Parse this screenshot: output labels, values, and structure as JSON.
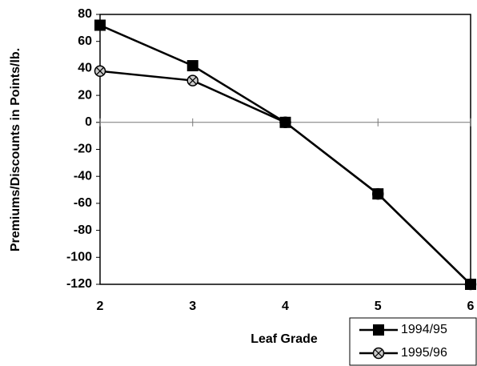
{
  "chart_data": {
    "type": "line",
    "x": [
      2,
      3,
      4,
      5,
      6
    ],
    "series": [
      {
        "name": "1994/95",
        "color": "#000000",
        "marker": "square",
        "values": [
          72,
          42,
          0,
          -53,
          -120
        ]
      },
      {
        "name": "1995/96",
        "color": "#000000",
        "marker": "circle-x",
        "values": [
          38,
          31,
          0,
          -53,
          -120
        ]
      }
    ],
    "xlabel": "Leaf Grade",
    "ylabel": "Premiums/Discounts in Points/lb.",
    "xlim": [
      2,
      6
    ],
    "xticks": [
      2,
      3,
      4,
      5,
      6
    ],
    "ylim": [
      -120,
      80
    ],
    "yticks": [
      -120,
      -100,
      -80,
      -60,
      -40,
      -20,
      0,
      20,
      40,
      60,
      80
    ],
    "legend": "bottom-right"
  }
}
